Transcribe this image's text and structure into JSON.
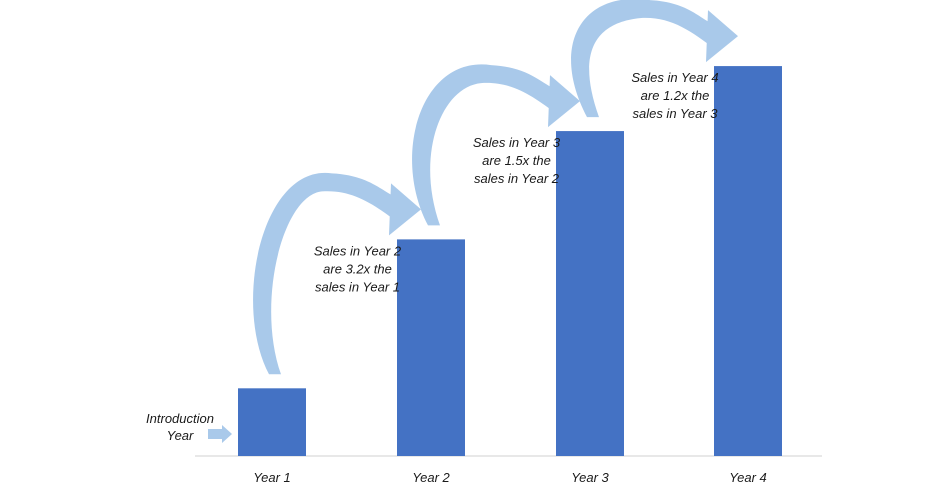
{
  "chart_data": {
    "type": "bar",
    "categories": [
      "Year 1",
      "Year 2",
      "Year 3",
      "Year 4"
    ],
    "values": [
      1.0,
      3.2,
      4.8,
      5.76
    ],
    "ylim": [
      0,
      6.5
    ],
    "bar_color": "#4472C4",
    "arrow_colors": {
      "head": "#A9C9EA",
      "tail": "#7F9DB9"
    },
    "grid": false,
    "annotations": [
      {
        "lines": [
          "Sales in Year 2",
          "are 3.2x the",
          "sales in Year 1"
        ]
      },
      {
        "lines": [
          "Sales in Year 3",
          "are 1.5x the",
          "sales in Year 2"
        ]
      },
      {
        "lines": [
          "Sales in Year 4",
          "are 1.2x the",
          "sales in Year 3"
        ]
      }
    ],
    "intro_label": [
      "Introduction",
      "Year"
    ]
  }
}
